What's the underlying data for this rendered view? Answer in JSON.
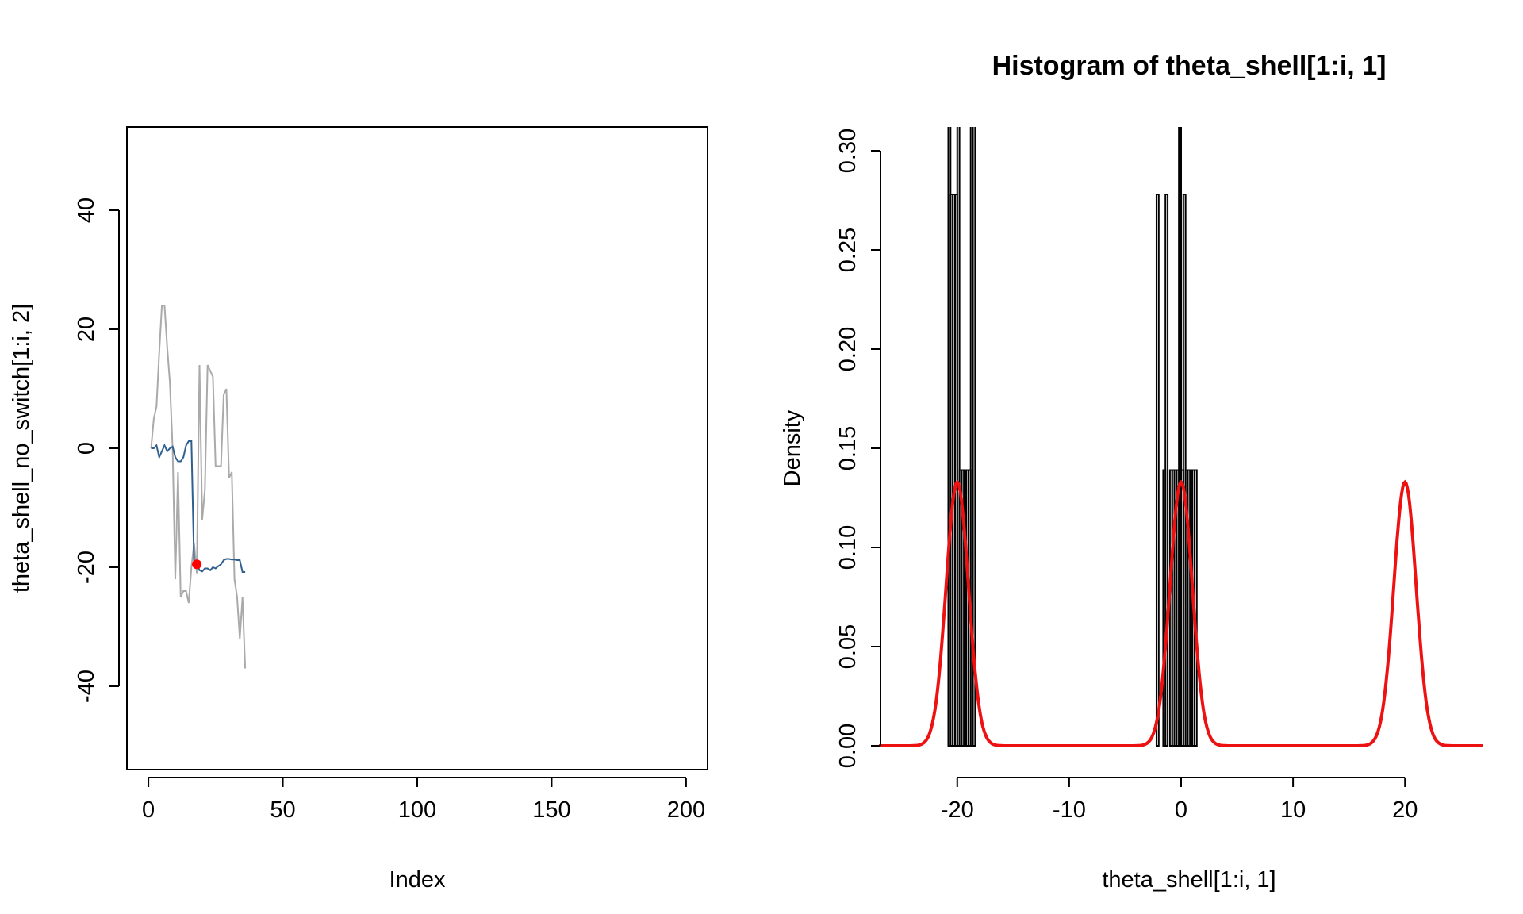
{
  "chart_data": [
    {
      "type": "line",
      "title": "",
      "xlabel": "Index",
      "ylabel": "theta_shell_no_switch[1:i, 2]",
      "xlim": [
        -8,
        208
      ],
      "ylim": [
        -54,
        54
      ],
      "box": true,
      "grid": false,
      "x_ticks": [
        0,
        50,
        100,
        150,
        200
      ],
      "y_ticks": [
        -40,
        -20,
        0,
        20,
        40
      ],
      "series": [
        {
          "color": "#aaaaaa",
          "x": [
            1,
            2,
            3,
            4,
            5,
            6,
            7,
            8,
            9,
            10,
            11,
            12,
            13,
            14,
            15,
            16,
            17,
            18,
            19,
            20,
            21,
            22,
            23,
            24,
            25,
            26,
            27,
            28,
            29,
            30,
            31,
            32,
            33,
            34,
            35,
            36
          ],
          "y": [
            0,
            5,
            7,
            16,
            24,
            24,
            17,
            11,
            0,
            -22,
            -4,
            -25,
            -24,
            -24,
            -26,
            -20,
            -16,
            -21,
            14,
            -12,
            -7,
            14,
            13,
            12,
            -3,
            -3,
            -3,
            9,
            10,
            -5,
            -4,
            -22,
            -25,
            -32,
            -25,
            -37
          ]
        },
        {
          "color": "#2f5f8f",
          "x": [
            1,
            2,
            3,
            4,
            5,
            6,
            7,
            8,
            9,
            10,
            11,
            12,
            13,
            14,
            15,
            16,
            17,
            18,
            19,
            20,
            21,
            22,
            23,
            24,
            25,
            26,
            27,
            28,
            29,
            30,
            31,
            32,
            33,
            34,
            35,
            36
          ],
          "y": [
            0,
            0,
            0.5,
            -1.5,
            -0.5,
            0.5,
            -0.5,
            0,
            0.3,
            -1.5,
            -2.2,
            -2.2,
            -1.5,
            0.5,
            1.2,
            1.2,
            -19.5,
            -19.2,
            -20.5,
            -20.7,
            -20.2,
            -20.2,
            -20.5,
            -20,
            -20.2,
            -19.8,
            -19.5,
            -18.8,
            -18.6,
            -18.6,
            -18.7,
            -18.7,
            -18.8,
            -18.8,
            -20.8,
            -20.8
          ]
        }
      ],
      "highlight_point": {
        "x": 18,
        "y": -19.5,
        "color": "#ff0000"
      }
    },
    {
      "type": "histogram",
      "title": "Histogram of theta_shell[1:i, 1]",
      "xlabel": "theta_shell[1:i, 1]",
      "ylabel": "Density",
      "xlim": [
        -27,
        27
      ],
      "ylim": [
        -0.012,
        0.312
      ],
      "box": false,
      "grid": false,
      "x_ticks": [
        -20,
        -10,
        0,
        10,
        20
      ],
      "y_ticks": [
        0.0,
        0.05,
        0.1,
        0.15,
        0.2,
        0.25,
        0.3
      ],
      "y_tick_labels": [
        "0.00",
        "0.05",
        "0.10",
        "0.15",
        "0.20",
        "0.25",
        "0.30"
      ],
      "bar_width": 0.2,
      "bar_color": "#000000",
      "bars": [
        {
          "x0": -20.8,
          "h": 0.9
        },
        {
          "x0": -20.6,
          "h": 0.278
        },
        {
          "x0": -20.4,
          "h": 0.278
        },
        {
          "x0": -20.2,
          "h": 0.278
        },
        {
          "x0": -20.0,
          "h": 0.9
        },
        {
          "x0": -19.8,
          "h": 0.139
        },
        {
          "x0": -19.6,
          "h": 0.139
        },
        {
          "x0": -19.4,
          "h": 0.139
        },
        {
          "x0": -19.2,
          "h": 0.139
        },
        {
          "x0": -19.0,
          "h": 0.139
        },
        {
          "x0": -18.8,
          "h": 0.9
        },
        {
          "x0": -18.6,
          "h": 0.9
        },
        {
          "x0": -2.2,
          "h": 0.278
        },
        {
          "x0": -2.0,
          "h": 0.0
        },
        {
          "x0": -1.8,
          "h": 0.0
        },
        {
          "x0": -1.6,
          "h": 0.139
        },
        {
          "x0": -1.4,
          "h": 0.278
        },
        {
          "x0": -1.2,
          "h": 0.0
        },
        {
          "x0": -1.0,
          "h": 0.139
        },
        {
          "x0": -0.8,
          "h": 0.139
        },
        {
          "x0": -0.6,
          "h": 0.139
        },
        {
          "x0": -0.4,
          "h": 0.139
        },
        {
          "x0": -0.2,
          "h": 0.9
        },
        {
          "x0": 0.0,
          "h": 0.139
        },
        {
          "x0": 0.2,
          "h": 0.278
        },
        {
          "x0": 0.4,
          "h": 0.139
        },
        {
          "x0": 0.6,
          "h": 0.139
        },
        {
          "x0": 0.8,
          "h": 0.139
        },
        {
          "x0": 1.0,
          "h": 0.139
        },
        {
          "x0": 1.2,
          "h": 0.139
        }
      ],
      "density_curve": {
        "color": "#ee1111",
        "components": [
          {
            "mean": -20,
            "sd": 1,
            "weight": 0.3333
          },
          {
            "mean": 0,
            "sd": 1,
            "weight": 0.3333
          },
          {
            "mean": 20,
            "sd": 1,
            "weight": 0.3333
          }
        ],
        "x_range": [
          -27,
          27
        ]
      }
    }
  ]
}
